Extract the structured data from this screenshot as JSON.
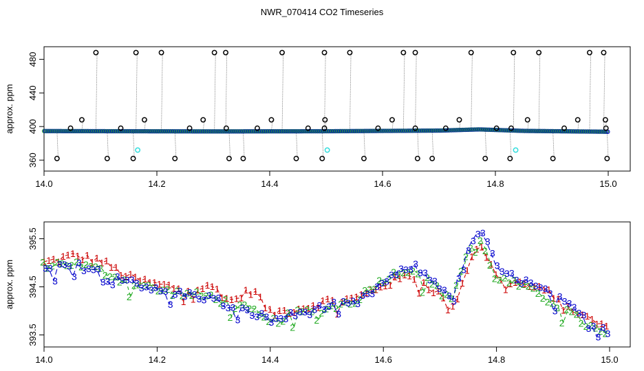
{
  "title": "NWR_070414  CO2 Timeseries",
  "colors": {
    "black": "#000000",
    "blue": "#0000cc",
    "cyan": "#33dddd",
    "green": "#22aa22",
    "red": "#cc0000",
    "gray": "#888888"
  },
  "chart_data": [
    {
      "type": "scatter",
      "xlim": [
        14.0,
        15.0
      ],
      "ylim": [
        347,
        495
      ],
      "ylabel": "approx. ppm",
      "xticks": [
        "14.0",
        "14.2",
        "14.4",
        "14.6",
        "14.8",
        "15.0"
      ],
      "yticks": [
        "360",
        "400",
        "440",
        "480"
      ],
      "baseline": {
        "x": [
          14.0,
          14.3,
          14.5,
          14.7,
          14.77,
          14.85,
          15.0
        ],
        "y": [
          394.6,
          394.2,
          394.4,
          395.2,
          396.6,
          394.8,
          393.8
        ]
      },
      "outliers": [
        [
          14.023,
          362
        ],
        [
          14.047,
          398
        ],
        [
          14.067,
          408
        ],
        [
          14.092,
          488
        ],
        [
          14.112,
          362
        ],
        [
          14.136,
          398
        ],
        [
          14.158,
          362
        ],
        [
          14.163,
          488
        ],
        [
          14.178,
          408
        ],
        [
          14.208,
          488
        ],
        [
          14.232,
          362
        ],
        [
          14.258,
          398
        ],
        [
          14.282,
          408
        ],
        [
          14.302,
          488
        ],
        [
          14.322,
          488
        ],
        [
          14.323,
          398
        ],
        [
          14.328,
          362
        ],
        [
          14.353,
          362
        ],
        [
          14.378,
          398
        ],
        [
          14.403,
          408
        ],
        [
          14.422,
          488
        ],
        [
          14.447,
          362
        ],
        [
          14.468,
          398
        ],
        [
          14.493,
          362
        ],
        [
          14.497,
          488
        ],
        [
          14.498,
          408
        ],
        [
          14.497,
          398
        ],
        [
          14.542,
          488
        ],
        [
          14.567,
          362
        ],
        [
          14.592,
          398
        ],
        [
          14.617,
          408
        ],
        [
          14.637,
          488
        ],
        [
          14.658,
          488
        ],
        [
          14.658,
          398
        ],
        [
          14.662,
          362
        ],
        [
          14.688,
          362
        ],
        [
          14.712,
          398
        ],
        [
          14.736,
          408
        ],
        [
          14.757,
          488
        ],
        [
          14.782,
          362
        ],
        [
          14.802,
          398
        ],
        [
          14.826,
          362
        ],
        [
          14.828,
          398
        ],
        [
          14.832,
          488
        ],
        [
          14.857,
          408
        ],
        [
          14.877,
          488
        ],
        [
          14.902,
          362
        ],
        [
          14.922,
          398
        ],
        [
          14.946,
          408
        ],
        [
          14.967,
          488
        ],
        [
          14.992,
          488
        ],
        [
          14.995,
          408
        ],
        [
          14.996,
          398
        ],
        [
          14.998,
          362
        ]
      ],
      "cyan_points": [
        [
          14.166,
          372
        ],
        [
          14.502,
          372
        ],
        [
          14.836,
          372
        ]
      ]
    },
    {
      "type": "line",
      "xlim": [
        14.0,
        15.0
      ],
      "ylim": [
        393.25,
        395.85
      ],
      "ylabel": "approx. ppm",
      "xticks": [
        "14.0",
        "14.2",
        "14.4",
        "14.6",
        "14.8",
        "15.0"
      ],
      "yticks": [
        "393.5",
        "394.5",
        "395.5"
      ],
      "series": [
        {
          "label": "1",
          "x": [
            14.0,
            14.05,
            14.1,
            14.15,
            14.2,
            14.25,
            14.3,
            14.33,
            14.37,
            14.4,
            14.45,
            14.5,
            14.55,
            14.6,
            14.65,
            14.7,
            14.72,
            14.75,
            14.77,
            14.8,
            14.85,
            14.9,
            14.95,
            15.0
          ],
          "y": [
            395.0,
            395.15,
            395.05,
            394.7,
            394.55,
            394.45,
            394.5,
            394.2,
            394.45,
            393.95,
            394.05,
            394.2,
            394.25,
            394.55,
            394.75,
            394.35,
            393.95,
            394.95,
            395.45,
            394.7,
            394.55,
            394.35,
            393.9,
            393.65
          ]
        },
        {
          "label": "2",
          "x": [
            14.0,
            14.05,
            14.1,
            14.15,
            14.2,
            14.25,
            14.3,
            14.33,
            14.37,
            14.4,
            14.45,
            14.5,
            14.55,
            14.6,
            14.65,
            14.7,
            14.72,
            14.75,
            14.77,
            14.8,
            14.85,
            14.9,
            14.95,
            15.0
          ],
          "y": [
            394.95,
            395.0,
            394.85,
            394.6,
            394.45,
            394.35,
            394.3,
            394.15,
            394.0,
            393.75,
            393.95,
            394.05,
            394.2,
            394.65,
            394.9,
            394.45,
            394.2,
            395.2,
            395.55,
            394.7,
            394.5,
            394.2,
            393.8,
            393.45
          ]
        },
        {
          "label": "3",
          "x": [
            14.0,
            14.05,
            14.1,
            14.15,
            14.2,
            14.25,
            14.3,
            14.33,
            14.37,
            14.4,
            14.45,
            14.5,
            14.55,
            14.6,
            14.65,
            14.7,
            14.72,
            14.75,
            14.77,
            14.8,
            14.85,
            14.9,
            14.95,
            15.0
          ],
          "y": [
            394.85,
            394.95,
            394.85,
            394.65,
            394.4,
            394.35,
            394.25,
            394.05,
            393.95,
            393.8,
            393.95,
            394.1,
            394.15,
            394.6,
            394.95,
            394.5,
            394.3,
            395.25,
            395.75,
            394.85,
            394.6,
            394.3,
            393.9,
            393.55
          ]
        }
      ]
    }
  ]
}
